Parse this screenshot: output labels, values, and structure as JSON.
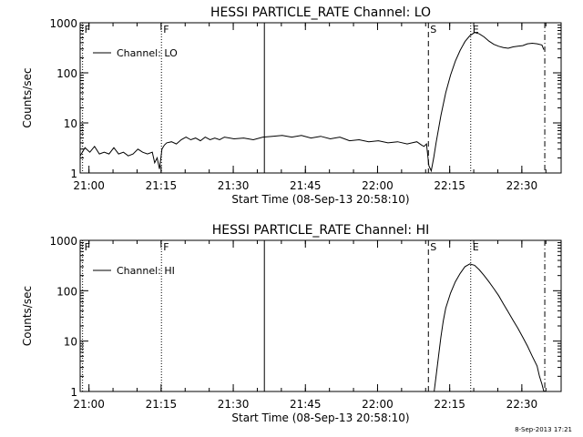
{
  "page": {
    "footer_timestamp": "8-Sep-2013 17:21"
  },
  "chart_data": [
    {
      "type": "line",
      "title": "HESSI PARTICLE_RATE Channel: LO",
      "xlabel": "Start Time (08-Sep-13 20:58:10)",
      "ylabel": "Counts/sec",
      "x_unit": "minutes after 20:58:10",
      "xlim": [
        0,
        100
      ],
      "ylim": [
        1,
        1000
      ],
      "yscale": "log",
      "x_ticks": [
        {
          "value": 1.83,
          "label": "21:00"
        },
        {
          "value": 16.83,
          "label": "21:15"
        },
        {
          "value": 31.83,
          "label": "21:30"
        },
        {
          "value": 46.83,
          "label": "21:45"
        },
        {
          "value": 61.83,
          "label": "22:00"
        },
        {
          "value": 76.83,
          "label": "22:15"
        },
        {
          "value": 91.83,
          "label": "22:30"
        }
      ],
      "y_ticks": [
        {
          "value": 1,
          "label": "1"
        },
        {
          "value": 10,
          "label": "10"
        },
        {
          "value": 100,
          "label": "100"
        },
        {
          "value": 1000,
          "label": "1000"
        }
      ],
      "legend": {
        "label": "Channel: LO",
        "position": "top-left"
      },
      "markers": [
        {
          "x": 0.5,
          "label": "F",
          "style": "dotted"
        },
        {
          "x": 16.9,
          "label": "F",
          "style": "dotted"
        },
        {
          "x": 38.3,
          "label": "",
          "style": "solid"
        },
        {
          "x": 72.4,
          "label": "S",
          "style": "dashed"
        },
        {
          "x": 81.2,
          "label": "E",
          "style": "dotted"
        },
        {
          "x": 96.6,
          "label": "",
          "style": "dashdot"
        }
      ],
      "series": [
        {
          "x": [
            0,
            1,
            2,
            3,
            4,
            5,
            6,
            7,
            8,
            9,
            10,
            11,
            12,
            13,
            14,
            15,
            15.5,
            16,
            16.5,
            17,
            17.5,
            18,
            19,
            20,
            21,
            22,
            23,
            24,
            25,
            26,
            27,
            28,
            29,
            30,
            32,
            34,
            36,
            38,
            40,
            42,
            44,
            46,
            48,
            50,
            52,
            54,
            56,
            58,
            60,
            62,
            64,
            66,
            68,
            69,
            70,
            71,
            71.5,
            72,
            72.5,
            73,
            73.5,
            74,
            75,
            76,
            77,
            78,
            79,
            80,
            81,
            82,
            83,
            84,
            85,
            86,
            87,
            88,
            89,
            90,
            91,
            92,
            93,
            94,
            95,
            96,
            96.4
          ],
          "y": [
            2.2,
            3.2,
            2.6,
            3.4,
            2.4,
            2.6,
            2.4,
            3.2,
            2.4,
            2.6,
            2.2,
            2.4,
            3.0,
            2.6,
            2.4,
            2.6,
            1.6,
            2.0,
            1.2,
            3.0,
            3.6,
            4.0,
            4.2,
            3.8,
            4.6,
            5.2,
            4.6,
            5.0,
            4.4,
            5.2,
            4.6,
            5.0,
            4.6,
            5.2,
            4.8,
            5.0,
            4.6,
            5.2,
            5.4,
            5.6,
            5.2,
            5.6,
            5.0,
            5.4,
            4.8,
            5.2,
            4.4,
            4.6,
            4.2,
            4.4,
            4.0,
            4.2,
            3.8,
            4.0,
            4.2,
            3.6,
            3.4,
            3.8,
            1.4,
            1.1,
            2.0,
            4.0,
            14,
            40,
            90,
            170,
            280,
            420,
            550,
            640,
            600,
            520,
            430,
            370,
            340,
            320,
            310,
            330,
            340,
            350,
            380,
            390,
            380,
            360,
            290
          ]
        }
      ]
    },
    {
      "type": "line",
      "title": "HESSI PARTICLE_RATE Channel: HI",
      "xlabel": "Start Time (08-Sep-13 20:58:10)",
      "ylabel": "Counts/sec",
      "x_unit": "minutes after 20:58:10",
      "xlim": [
        0,
        100
      ],
      "ylim": [
        1,
        1000
      ],
      "yscale": "log",
      "x_ticks": [
        {
          "value": 1.83,
          "label": "21:00"
        },
        {
          "value": 16.83,
          "label": "21:15"
        },
        {
          "value": 31.83,
          "label": "21:30"
        },
        {
          "value": 46.83,
          "label": "21:45"
        },
        {
          "value": 61.83,
          "label": "22:00"
        },
        {
          "value": 76.83,
          "label": "22:15"
        },
        {
          "value": 91.83,
          "label": "22:30"
        }
      ],
      "y_ticks": [
        {
          "value": 1,
          "label": "1"
        },
        {
          "value": 10,
          "label": "10"
        },
        {
          "value": 100,
          "label": "100"
        },
        {
          "value": 1000,
          "label": "1000"
        }
      ],
      "legend": {
        "label": "Channel: HI",
        "position": "top-left"
      },
      "markers": [
        {
          "x": 0.5,
          "label": "F",
          "style": "dotted"
        },
        {
          "x": 16.9,
          "label": "F",
          "style": "dotted"
        },
        {
          "x": 38.3,
          "label": "",
          "style": "solid"
        },
        {
          "x": 72.4,
          "label": "S",
          "style": "dashed"
        },
        {
          "x": 81.2,
          "label": "E",
          "style": "dotted"
        },
        {
          "x": 96.6,
          "label": "",
          "style": "dashdot"
        }
      ],
      "series": [
        {
          "x": [
            73.6,
            74,
            74.5,
            75,
            75.5,
            76,
            77,
            78,
            79,
            80,
            81,
            82,
            83,
            84,
            85,
            86,
            87,
            88,
            89,
            90,
            91,
            92,
            93,
            94,
            95,
            95.5,
            96,
            96.4
          ],
          "y": [
            1.0,
            2.0,
            5,
            12,
            25,
            45,
            90,
            150,
            220,
            300,
            340,
            320,
            260,
            200,
            150,
            110,
            80,
            55,
            38,
            26,
            18,
            12,
            8,
            5,
            3.2,
            2.0,
            1.4,
            1.0
          ]
        }
      ]
    }
  ]
}
